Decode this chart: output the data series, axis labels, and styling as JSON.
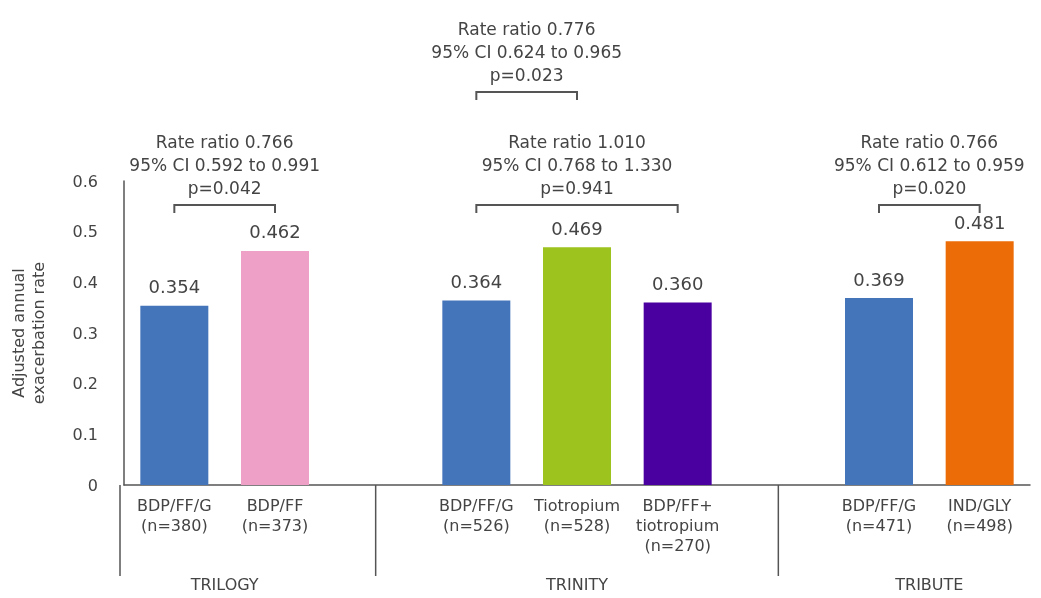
{
  "chart_data": {
    "type": "bar",
    "ylabel": "Adjusted annual\nexacerbation rate",
    "categories": [
      "BDP/FF/G\n(n=380)",
      "BDP/FF\n(n=373)",
      null,
      "BDP/FF/G\n(n=526)",
      "Tiotropium\n(n=528)",
      "BDP/FF+\ntiotropium\n(n=270)",
      null,
      "BDP/FF/G\n(n=471)",
      "IND/GLY\n(n=498)"
    ],
    "values": [
      0.354,
      0.462,
      null,
      0.364,
      0.469,
      0.36,
      null,
      0.369,
      0.481
    ],
    "value_labels": [
      "0.354",
      "0.462",
      null,
      "0.364",
      "0.469",
      "0.360",
      null,
      "0.369",
      "0.481"
    ],
    "colors": [
      "#4475bb",
      "#eea0c6",
      null,
      "#4475bb",
      "#9dc31f",
      "#4a00a0",
      null,
      "#4475bb",
      "#ec6d07"
    ],
    "ylim": [
      0,
      0.6
    ],
    "yticks": [
      0,
      0.1,
      0.2,
      0.3,
      0.4,
      0.5,
      0.6
    ],
    "grid": false,
    "annotations": [
      "Rate ratio 0.766\n95% CI 0.592 to 0.991\np=0.042",
      "Rate ratio 0.776\n95% CI 0.624 to 0.965\np=0.023",
      "Rate ratio 1.010\n95% CI 0.768 to 1.330\np=0.941",
      "Rate ratio 0.766\n95% CI 0.612 to 0.959\np=0.020",
      "TRILOGY",
      "TRINITY",
      "TRIBUTE"
    ]
  }
}
